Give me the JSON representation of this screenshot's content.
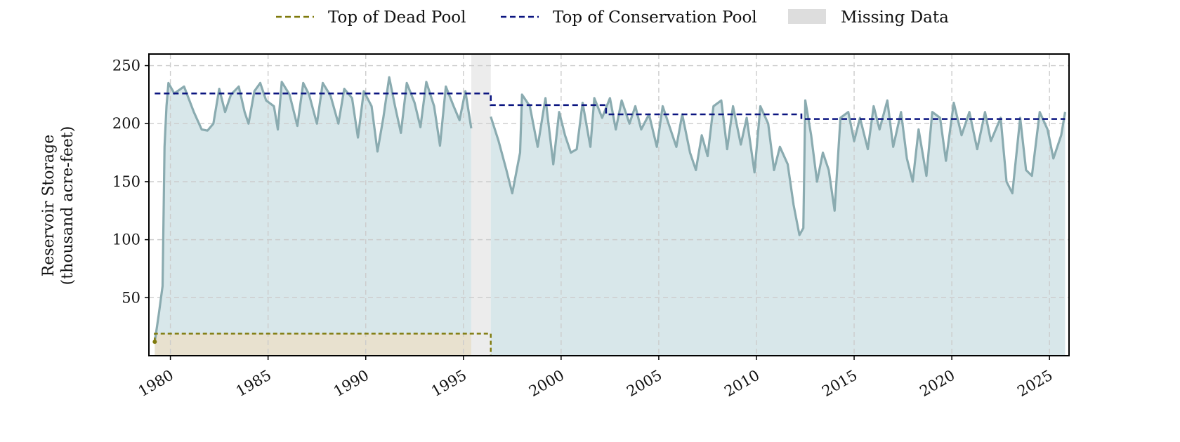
{
  "chart_data": {
    "type": "area",
    "title": "",
    "xlabel": "",
    "ylabel": [
      "Reservoir Storage",
      "(thousand acre-feet)"
    ],
    "xlim": [
      1978.9,
      2026.0
    ],
    "ylim": [
      0,
      260
    ],
    "grid": true,
    "legend_placement": "top-center",
    "x_ticks": [
      1980,
      1985,
      1990,
      1995,
      2000,
      2005,
      2010,
      2015,
      2020,
      2025
    ],
    "y_ticks": [
      50,
      100,
      150,
      200,
      250
    ],
    "legend": [
      {
        "label": "Top of Dead Pool",
        "kind": "dashed",
        "color": "#7f7a0c"
      },
      {
        "label": "Top of Conservation Pool",
        "kind": "dashed",
        "color": "#0b1580"
      },
      {
        "label": "Missing Data",
        "kind": "patch",
        "color": "#dddddd"
      }
    ],
    "colors": {
      "storage_line": "#8aabb0",
      "storage_fill": "#d8e7ea",
      "dead_pool_fill": "#e8e1cf",
      "dead_pool_line": "#7f7a0c",
      "conservation_line": "#0b1580",
      "missing_fill": "#ececec"
    },
    "missing_data": [
      [
        1995.4,
        1996.4
      ]
    ],
    "top_of_dead_pool": [
      {
        "x": 1979.2,
        "y": 12
      },
      {
        "x": 1979.2,
        "y": 19
      },
      {
        "x": 1996.4,
        "y": 19
      },
      {
        "x": 1996.4,
        "y": 0
      }
    ],
    "top_of_conservation_pool": [
      {
        "x": 1979.2,
        "y": 226
      },
      {
        "x": 1996.4,
        "y": 226
      },
      {
        "x": 1996.4,
        "y": 216
      },
      {
        "x": 2002.3,
        "y": 216
      },
      {
        "x": 2002.3,
        "y": 208
      },
      {
        "x": 2012.3,
        "y": 208
      },
      {
        "x": 2012.3,
        "y": 204
      },
      {
        "x": 2025.8,
        "y": 204
      }
    ],
    "series": [
      {
        "points": [
          [
            1979.2,
            12
          ],
          [
            1979.4,
            35
          ],
          [
            1979.6,
            60
          ],
          [
            1979.7,
            180
          ],
          [
            1979.8,
            215
          ],
          [
            1979.9,
            235
          ],
          [
            1980.2,
            226
          ],
          [
            1980.7,
            232
          ],
          [
            1981.2,
            210
          ],
          [
            1981.6,
            195
          ],
          [
            1981.9,
            194
          ],
          [
            1982.2,
            200
          ],
          [
            1982.5,
            230
          ],
          [
            1982.8,
            210
          ],
          [
            1983.1,
            225
          ],
          [
            1983.5,
            232
          ],
          [
            1983.8,
            210
          ],
          [
            1984.0,
            200
          ],
          [
            1984.3,
            228
          ],
          [
            1984.6,
            235
          ],
          [
            1984.9,
            220
          ],
          [
            1985.3,
            215
          ],
          [
            1985.5,
            195
          ],
          [
            1985.7,
            236
          ],
          [
            1986.1,
            225
          ],
          [
            1986.5,
            198
          ],
          [
            1986.8,
            235
          ],
          [
            1987.1,
            225
          ],
          [
            1987.5,
            200
          ],
          [
            1987.8,
            235
          ],
          [
            1988.2,
            224
          ],
          [
            1988.6,
            200
          ],
          [
            1988.9,
            230
          ],
          [
            1989.3,
            222
          ],
          [
            1989.6,
            188
          ],
          [
            1989.9,
            228
          ],
          [
            1990.3,
            215
          ],
          [
            1990.6,
            176
          ],
          [
            1990.9,
            205
          ],
          [
            1991.2,
            240
          ],
          [
            1991.5,
            215
          ],
          [
            1991.8,
            192
          ],
          [
            1992.1,
            235
          ],
          [
            1992.5,
            218
          ],
          [
            1992.8,
            197
          ],
          [
            1993.1,
            236
          ],
          [
            1993.5,
            215
          ],
          [
            1993.8,
            181
          ],
          [
            1994.1,
            232
          ],
          [
            1994.5,
            215
          ],
          [
            1994.8,
            203
          ],
          [
            1995.1,
            228
          ],
          [
            1995.4,
            196
          ],
          null,
          [
            1996.4,
            206
          ],
          [
            1996.8,
            185
          ],
          [
            1997.2,
            160
          ],
          [
            1997.5,
            140
          ],
          [
            1997.9,
            175
          ],
          [
            1998.0,
            225
          ],
          [
            1998.4,
            215
          ],
          [
            1998.8,
            180
          ],
          [
            1999.2,
            222
          ],
          [
            1999.6,
            165
          ],
          [
            1999.9,
            210
          ],
          [
            2000.2,
            190
          ],
          [
            2000.5,
            175
          ],
          [
            2000.8,
            178
          ],
          [
            2001.1,
            218
          ],
          [
            2001.5,
            180
          ],
          [
            2001.7,
            222
          ],
          [
            2002.1,
            205
          ],
          [
            2002.5,
            222
          ],
          [
            2002.8,
            195
          ],
          [
            2003.1,
            220
          ],
          [
            2003.5,
            200
          ],
          [
            2003.8,
            215
          ],
          [
            2004.1,
            195
          ],
          [
            2004.5,
            208
          ],
          [
            2004.9,
            180
          ],
          [
            2005.2,
            215
          ],
          [
            2005.5,
            200
          ],
          [
            2005.9,
            180
          ],
          [
            2006.2,
            208
          ],
          [
            2006.6,
            175
          ],
          [
            2006.9,
            160
          ],
          [
            2007.2,
            190
          ],
          [
            2007.5,
            172
          ],
          [
            2007.8,
            215
          ],
          [
            2008.2,
            220
          ],
          [
            2008.5,
            178
          ],
          [
            2008.8,
            215
          ],
          [
            2009.2,
            182
          ],
          [
            2009.5,
            205
          ],
          [
            2009.9,
            158
          ],
          [
            2010.2,
            215
          ],
          [
            2010.6,
            200
          ],
          [
            2010.9,
            160
          ],
          [
            2011.2,
            180
          ],
          [
            2011.6,
            165
          ],
          [
            2011.9,
            130
          ],
          [
            2012.2,
            104
          ],
          [
            2012.4,
            110
          ],
          [
            2012.5,
            220
          ],
          [
            2012.8,
            190
          ],
          [
            2013.1,
            150
          ],
          [
            2013.4,
            175
          ],
          [
            2013.7,
            160
          ],
          [
            2014.0,
            125
          ],
          [
            2014.3,
            205
          ],
          [
            2014.7,
            210
          ],
          [
            2015.0,
            185
          ],
          [
            2015.3,
            205
          ],
          [
            2015.7,
            178
          ],
          [
            2016.0,
            215
          ],
          [
            2016.3,
            195
          ],
          [
            2016.7,
            220
          ],
          [
            2017.0,
            180
          ],
          [
            2017.4,
            210
          ],
          [
            2017.7,
            170
          ],
          [
            2018.0,
            150
          ],
          [
            2018.3,
            195
          ],
          [
            2018.7,
            155
          ],
          [
            2019.0,
            210
          ],
          [
            2019.4,
            205
          ],
          [
            2019.7,
            168
          ],
          [
            2020.1,
            218
          ],
          [
            2020.5,
            190
          ],
          [
            2020.9,
            210
          ],
          [
            2021.3,
            178
          ],
          [
            2021.7,
            210
          ],
          [
            2022.0,
            185
          ],
          [
            2022.5,
            205
          ],
          [
            2022.8,
            150
          ],
          [
            2023.1,
            140
          ],
          [
            2023.5,
            205
          ],
          [
            2023.8,
            160
          ],
          [
            2024.1,
            155
          ],
          [
            2024.5,
            210
          ],
          [
            2024.9,
            195
          ],
          [
            2025.2,
            170
          ],
          [
            2025.6,
            190
          ],
          [
            2025.8,
            210
          ]
        ]
      }
    ]
  }
}
